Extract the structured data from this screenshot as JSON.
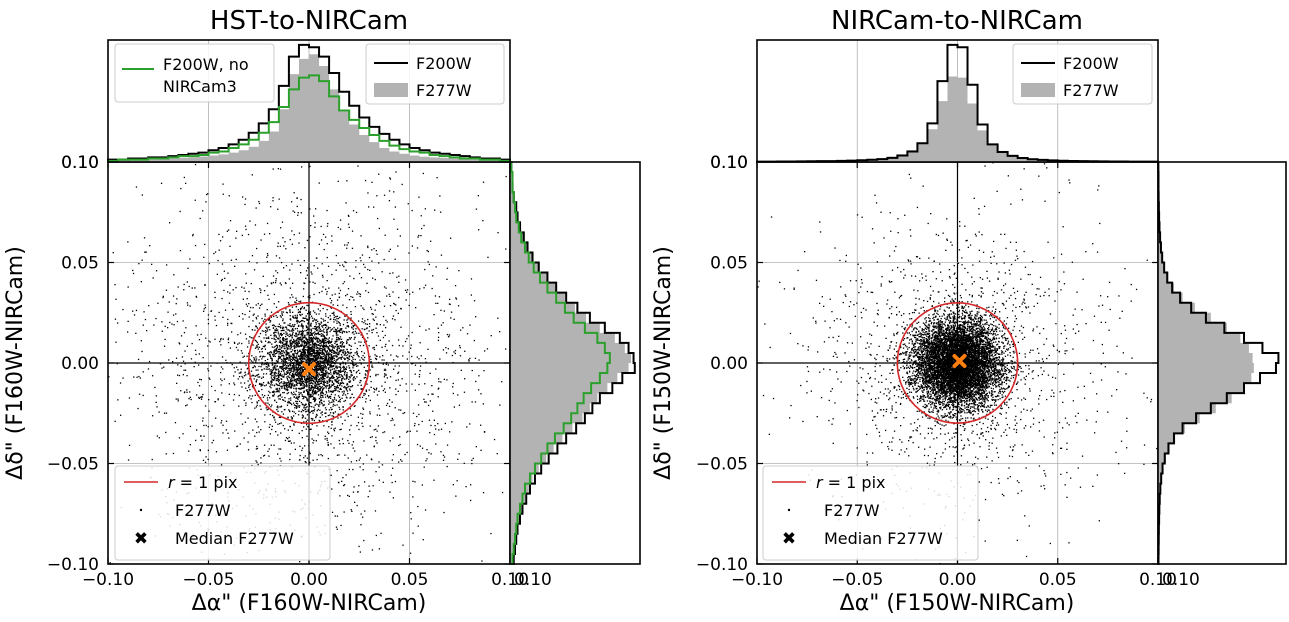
{
  "colors": {
    "scatter": "#000000",
    "circle": "#d62728",
    "median": "#ff7f0e",
    "hist_f200w": "#000000",
    "hist_f200w_no_nircam3": "#2ca02c",
    "hist_f277w_fill": "#b3b3b3",
    "grid": "#b0b0b0",
    "background": "#ffffff"
  },
  "chart_data": [
    {
      "type": "scatter",
      "title": "HST-to-NIRCam",
      "xlabel": "Δα\" (F160W-NIRCam)",
      "ylabel": "Δδ\" (F160W-NIRCam)",
      "xlim": [
        -0.1,
        0.1
      ],
      "ylim": [
        -0.1,
        0.1
      ],
      "xticks": [
        "−0.10",
        "−0.05",
        "0.00",
        "0.05",
        "0.10"
      ],
      "yticks": [
        "−0.10",
        "−0.05",
        "0.00",
        "0.05",
        "0.10"
      ],
      "grid": true,
      "zero_lines": true,
      "scatter": {
        "name": "F277W",
        "n_points": 5000,
        "core_sigma": 0.012,
        "halo_sigma": 0.045,
        "halo_fraction": 0.42
      },
      "circle": {
        "name": "r = 1 pix",
        "radius": 0.03
      },
      "median": {
        "name": "Median F277W",
        "x": 0.0,
        "y": -0.003
      },
      "legend": {
        "location": "lower-left",
        "entries": [
          "r = 1 pix",
          "F277W",
          "Median F277W"
        ]
      },
      "top_histogram": {
        "legend_left": {
          "location": "upper-left",
          "entries": [
            "F200W, no",
            "NIRCam3"
          ]
        },
        "legend_right": {
          "location": "upper-right",
          "entries": [
            "F200W",
            "F277W"
          ]
        },
        "bin_edges": [
          -0.1,
          -0.095,
          -0.09,
          -0.085,
          -0.08,
          -0.075,
          -0.07,
          -0.065,
          -0.06,
          -0.055,
          -0.05,
          -0.045,
          -0.04,
          -0.035,
          -0.03,
          -0.025,
          -0.02,
          -0.015,
          -0.01,
          -0.005,
          0.0,
          0.005,
          0.01,
          0.015,
          0.02,
          0.025,
          0.03,
          0.035,
          0.04,
          0.045,
          0.05,
          0.055,
          0.06,
          0.065,
          0.07,
          0.075,
          0.08,
          0.085,
          0.09,
          0.095,
          0.1
        ],
        "series": [
          {
            "name": "F277W",
            "style": "filled",
            "values": [
              0.01,
              0.012,
              0.015,
              0.018,
              0.02,
              0.024,
              0.03,
              0.035,
              0.04,
              0.047,
              0.055,
              0.065,
              0.08,
              0.1,
              0.13,
              0.18,
              0.26,
              0.45,
              0.75,
              0.88,
              0.92,
              0.82,
              0.62,
              0.43,
              0.32,
              0.23,
              0.17,
              0.12,
              0.09,
              0.07,
              0.055,
              0.045,
              0.04,
              0.034,
              0.03,
              0.025,
              0.02,
              0.016,
              0.013,
              0.01
            ]
          },
          {
            "name": "F200W",
            "style": "step",
            "values": [
              0.02,
              0.02,
              0.03,
              0.03,
              0.04,
              0.04,
              0.05,
              0.06,
              0.07,
              0.08,
              0.1,
              0.12,
              0.15,
              0.19,
              0.25,
              0.33,
              0.45,
              0.65,
              0.9,
              1.0,
              0.98,
              0.9,
              0.76,
              0.6,
              0.48,
              0.38,
              0.3,
              0.24,
              0.19,
              0.15,
              0.12,
              0.1,
              0.08,
              0.07,
              0.06,
              0.05,
              0.04,
              0.03,
              0.03,
              0.02
            ]
          },
          {
            "name": "F200W, no NIRCam3",
            "style": "step",
            "values": [
              0.01,
              0.02,
              0.02,
              0.02,
              0.03,
              0.03,
              0.04,
              0.05,
              0.05,
              0.06,
              0.08,
              0.09,
              0.12,
              0.15,
              0.19,
              0.25,
              0.34,
              0.47,
              0.62,
              0.72,
              0.74,
              0.69,
              0.56,
              0.44,
              0.36,
              0.29,
              0.23,
              0.18,
              0.14,
              0.11,
              0.09,
              0.08,
              0.06,
              0.05,
              0.04,
              0.03,
              0.03,
              0.02,
              0.02,
              0.01
            ]
          }
        ]
      },
      "right_histogram": {
        "bin_edges": [
          -0.1,
          -0.095,
          -0.09,
          -0.085,
          -0.08,
          -0.075,
          -0.07,
          -0.065,
          -0.06,
          -0.055,
          -0.05,
          -0.045,
          -0.04,
          -0.035,
          -0.03,
          -0.025,
          -0.02,
          -0.015,
          -0.01,
          -0.005,
          0.0,
          0.005,
          0.01,
          0.015,
          0.02,
          0.025,
          0.03,
          0.035,
          0.04,
          0.045,
          0.05,
          0.055,
          0.06,
          0.065,
          0.07,
          0.075,
          0.08,
          0.085,
          0.09,
          0.095,
          0.1
        ],
        "series": [
          {
            "name": "F277W",
            "style": "filled",
            "values": [
              0.03,
              0.04,
              0.05,
              0.06,
              0.08,
              0.1,
              0.12,
              0.15,
              0.18,
              0.23,
              0.29,
              0.35,
              0.42,
              0.5,
              0.58,
              0.64,
              0.7,
              0.78,
              0.86,
              0.95,
              0.97,
              0.92,
              0.84,
              0.72,
              0.61,
              0.52,
              0.44,
              0.37,
              0.3,
              0.24,
              0.19,
              0.15,
              0.12,
              0.09,
              0.07,
              0.05,
              0.04,
              0.03,
              0.02,
              0.02
            ]
          },
          {
            "name": "F200W",
            "style": "step",
            "values": [
              0.03,
              0.04,
              0.05,
              0.06,
              0.08,
              0.1,
              0.13,
              0.16,
              0.2,
              0.25,
              0.31,
              0.38,
              0.45,
              0.53,
              0.6,
              0.66,
              0.72,
              0.82,
              0.9,
              1.0,
              0.99,
              0.95,
              0.88,
              0.76,
              0.64,
              0.54,
              0.45,
              0.37,
              0.3,
              0.23,
              0.18,
              0.14,
              0.11,
              0.08,
              0.06,
              0.05,
              0.03,
              0.02,
              0.02,
              0.01
            ]
          },
          {
            "name": "F200W, no NIRCam3",
            "style": "step",
            "values": [
              0.02,
              0.03,
              0.04,
              0.05,
              0.06,
              0.08,
              0.1,
              0.12,
              0.16,
              0.2,
              0.25,
              0.3,
              0.36,
              0.43,
              0.49,
              0.54,
              0.59,
              0.65,
              0.72,
              0.78,
              0.8,
              0.76,
              0.7,
              0.6,
              0.51,
              0.44,
              0.37,
              0.3,
              0.24,
              0.19,
              0.15,
              0.12,
              0.09,
              0.07,
              0.05,
              0.04,
              0.03,
              0.02,
              0.02,
              0.01
            ]
          }
        ]
      }
    },
    {
      "type": "scatter",
      "title": "NIRCam-to-NIRCam",
      "xlabel": "Δα\" (F150W-NIRCam)",
      "ylabel": "Δδ\" (F150W-NIRCam)",
      "xlim": [
        -0.1,
        0.1
      ],
      "ylim": [
        -0.1,
        0.1
      ],
      "xticks": [
        "−0.10",
        "−0.05",
        "0.00",
        "0.05",
        "0.10"
      ],
      "yticks": [
        "−0.10",
        "−0.05",
        "0.00",
        "0.05",
        "0.10"
      ],
      "grid": true,
      "zero_lines": true,
      "scatter": {
        "name": "F277W",
        "n_points": 9000,
        "core_sigma": 0.011,
        "halo_sigma": 0.04,
        "halo_fraction": 0.14
      },
      "circle": {
        "name": "r = 1 pix",
        "radius": 0.03
      },
      "median": {
        "name": "Median F277W",
        "x": 0.001,
        "y": 0.001
      },
      "legend": {
        "location": "lower-left",
        "entries": [
          "r = 1 pix",
          "F277W",
          "Median F277W"
        ]
      },
      "top_histogram": {
        "legend_right": {
          "location": "upper-right",
          "entries": [
            "F200W",
            "F277W"
          ]
        },
        "bin_edges": [
          -0.1,
          -0.095,
          -0.09,
          -0.085,
          -0.08,
          -0.075,
          -0.07,
          -0.065,
          -0.06,
          -0.055,
          -0.05,
          -0.045,
          -0.04,
          -0.035,
          -0.03,
          -0.025,
          -0.02,
          -0.015,
          -0.01,
          -0.005,
          0.0,
          0.005,
          0.01,
          0.015,
          0.02,
          0.025,
          0.03,
          0.035,
          0.04,
          0.045,
          0.05,
          0.055,
          0.06,
          0.065,
          0.07,
          0.075,
          0.08,
          0.085,
          0.09,
          0.095,
          0.1
        ],
        "series": [
          {
            "name": "F277W",
            "style": "filled",
            "values": [
              0.005,
              0.005,
              0.006,
              0.007,
              0.008,
              0.009,
              0.01,
              0.012,
              0.014,
              0.017,
              0.02,
              0.025,
              0.032,
              0.045,
              0.065,
              0.1,
              0.16,
              0.28,
              0.52,
              0.73,
              0.72,
              0.5,
              0.27,
              0.15,
              0.095,
              0.062,
              0.043,
              0.031,
              0.024,
              0.019,
              0.015,
              0.012,
              0.01,
              0.009,
              0.008,
              0.007,
              0.006,
              0.005,
              0.005,
              0.004
            ]
          },
          {
            "name": "F200W",
            "style": "step",
            "values": [
              0.003,
              0.003,
              0.004,
              0.004,
              0.005,
              0.006,
              0.007,
              0.008,
              0.01,
              0.012,
              0.015,
              0.019,
              0.025,
              0.035,
              0.055,
              0.09,
              0.16,
              0.33,
              0.69,
              1.0,
              0.98,
              0.66,
              0.32,
              0.15,
              0.085,
              0.052,
              0.034,
              0.024,
              0.018,
              0.014,
              0.011,
              0.009,
              0.007,
              0.006,
              0.005,
              0.004,
              0.004,
              0.003,
              0.003,
              0.003
            ]
          }
        ]
      },
      "right_histogram": {
        "bin_edges": [
          -0.1,
          -0.095,
          -0.09,
          -0.085,
          -0.08,
          -0.075,
          -0.07,
          -0.065,
          -0.06,
          -0.055,
          -0.05,
          -0.045,
          -0.04,
          -0.035,
          -0.03,
          -0.025,
          -0.02,
          -0.015,
          -0.01,
          -0.005,
          0.0,
          0.005,
          0.01,
          0.015,
          0.02,
          0.025,
          0.03,
          0.035,
          0.04,
          0.045,
          0.05,
          0.055,
          0.06,
          0.065,
          0.07,
          0.075,
          0.08,
          0.085,
          0.09,
          0.095,
          0.1
        ],
        "series": [
          {
            "name": "F277W",
            "style": "filled",
            "values": [
              0.005,
              0.006,
              0.007,
              0.009,
              0.011,
              0.014,
              0.018,
              0.024,
              0.032,
              0.045,
              0.065,
              0.095,
              0.14,
              0.22,
              0.34,
              0.47,
              0.6,
              0.7,
              0.76,
              0.78,
              0.77,
              0.74,
              0.67,
              0.56,
              0.43,
              0.3,
              0.2,
              0.13,
              0.085,
              0.055,
              0.038,
              0.026,
              0.018,
              0.013,
              0.01,
              0.008,
              0.006,
              0.005,
              0.004,
              0.004
            ]
          },
          {
            "name": "F200W",
            "style": "step",
            "values": [
              0.004,
              0.005,
              0.006,
              0.007,
              0.009,
              0.011,
              0.014,
              0.019,
              0.026,
              0.037,
              0.055,
              0.085,
              0.13,
              0.2,
              0.31,
              0.43,
              0.56,
              0.7,
              0.83,
              0.96,
              0.98,
              0.85,
              0.7,
              0.54,
              0.39,
              0.27,
              0.18,
              0.115,
              0.075,
              0.05,
              0.034,
              0.024,
              0.017,
              0.012,
              0.009,
              0.007,
              0.005,
              0.004,
              0.004,
              0.003
            ]
          }
        ]
      }
    }
  ]
}
